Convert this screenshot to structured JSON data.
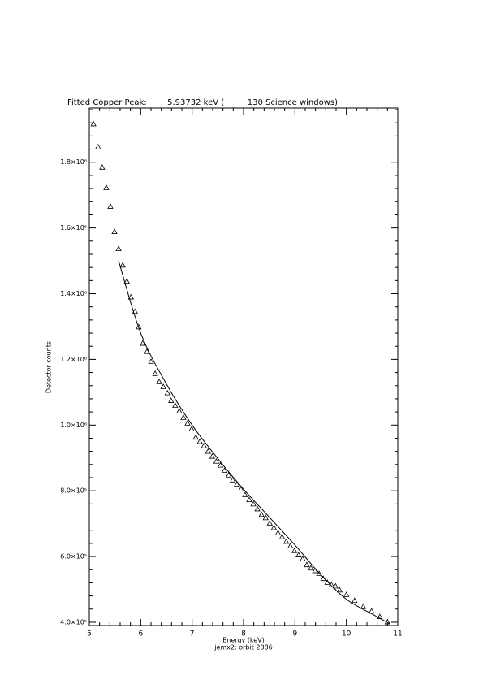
{
  "chart_data": {
    "type": "scatter",
    "title": "Fitted Copper Peak:        5.93732 keV (         130 Science windows)",
    "x_label": "Energy (keV)",
    "subtitle": "jemx2: orbit 2886",
    "y_label": "Detector counts",
    "xlim": [
      5,
      11
    ],
    "ylim": [
      390000,
      1965000
    ],
    "xticks": [
      5,
      6,
      7,
      8,
      9,
      10,
      11
    ],
    "yticks": [
      {
        "value": 400000,
        "label": "4.0×10⁵"
      },
      {
        "value": 600000,
        "label": "6.0×10⁵"
      },
      {
        "value": 800000,
        "label": "8.0×10⁵"
      },
      {
        "value": 1000000,
        "label": "1.0×10⁶"
      },
      {
        "value": 1200000,
        "label": "1.2×10⁶"
      },
      {
        "value": 1400000,
        "label": "1.4×10⁶"
      },
      {
        "value": 1600000,
        "label": "1.6×10⁶"
      },
      {
        "value": 1800000,
        "label": "1.8×10⁶"
      }
    ],
    "color": "#000000",
    "points": {
      "x": [
        5.08,
        5.17,
        5.25,
        5.33,
        5.41,
        5.49,
        5.57,
        5.65,
        5.73,
        5.81,
        5.89,
        5.96,
        6.04,
        6.12,
        6.2,
        6.28,
        6.36,
        6.44,
        6.52,
        6.59,
        6.67,
        6.75,
        6.83,
        6.91,
        6.99,
        7.07,
        7.15,
        7.23,
        7.31,
        7.39,
        7.47,
        7.55,
        7.63,
        7.71,
        7.79,
        7.87,
        7.95,
        8.03,
        8.11,
        8.19,
        8.27,
        8.35,
        8.43,
        8.51,
        8.59,
        8.67,
        8.75,
        8.83,
        8.91,
        8.99,
        9.07,
        9.15,
        9.23,
        9.31,
        9.39,
        9.47,
        9.55,
        9.63,
        9.71,
        9.79,
        9.87,
        10.0,
        10.16,
        10.33,
        10.49,
        10.65,
        10.8
      ],
      "y": [
        1917000,
        1847000,
        1785000,
        1723000,
        1666000,
        1589000,
        1537000,
        1487000,
        1438000,
        1390000,
        1346000,
        1299000,
        1249000,
        1224000,
        1194000,
        1157000,
        1132000,
        1117000,
        1098000,
        1075000,
        1060000,
        1043000,
        1023000,
        1006000,
        988000,
        963000,
        950000,
        937000,
        920000,
        905000,
        890000,
        878000,
        862000,
        848000,
        833000,
        820000,
        805000,
        788000,
        773000,
        760000,
        745000,
        728000,
        718000,
        702000,
        688000,
        672000,
        660000,
        646000,
        632000,
        618000,
        605000,
        593000,
        575000,
        565000,
        557000,
        548000,
        533000,
        521000,
        514000,
        510000,
        498000,
        484000,
        466000,
        448000,
        434000,
        417000,
        401000
      ]
    },
    "fit": {
      "x": [
        5.57,
        6.0,
        6.5,
        7.0,
        7.5,
        8.0,
        8.5,
        9.0,
        9.5,
        10.0,
        10.5,
        10.85
      ],
      "y": [
        1500000,
        1280000,
        1125000,
        1000000,
        898000,
        805000,
        720000,
        635000,
        545000,
        470000,
        425000,
        395000
      ]
    }
  }
}
